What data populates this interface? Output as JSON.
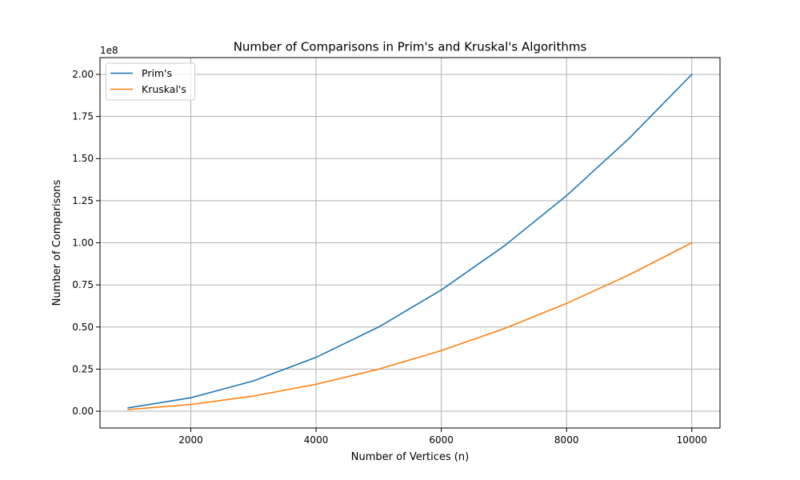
{
  "chart_data": {
    "type": "line",
    "title": "Number of Comparisons in Prim's and Kruskal's Algorithms",
    "xlabel": "Number of Vertices (n)",
    "ylabel": "Number of Comparisons",
    "y_offset_label": "1e8",
    "y_scale_factor": 100000000,
    "x": [
      1000,
      2000,
      3000,
      4000,
      5000,
      6000,
      7000,
      8000,
      9000,
      10000
    ],
    "series": [
      {
        "name": "Prim's",
        "color": "#1f77b4",
        "values": [
          2000000,
          8000000,
          18000000,
          32000000,
          50000000,
          72000000,
          98000000,
          128000000,
          162000000,
          200000000
        ]
      },
      {
        "name": "Kruskal's",
        "color": "#ff7f0e",
        "values": [
          1000000,
          4000000,
          9000000,
          16000000,
          25000000,
          36000000,
          49000000,
          64000000,
          81000000,
          100000000
        ]
      }
    ],
    "xlim": [
      550,
      10450
    ],
    "ylim": [
      -9950000,
      209950000
    ],
    "x_ticks": [
      2000,
      4000,
      6000,
      8000,
      10000
    ],
    "x_tick_labels": [
      "2000",
      "4000",
      "6000",
      "8000",
      "10000"
    ],
    "y_ticks": [
      0,
      25000000,
      50000000,
      75000000,
      100000000,
      125000000,
      150000000,
      175000000,
      200000000
    ],
    "y_tick_labels": [
      "0.00",
      "0.25",
      "0.50",
      "0.75",
      "1.00",
      "1.25",
      "1.50",
      "1.75",
      "2.00"
    ],
    "grid": true,
    "legend_position": "upper-left"
  }
}
